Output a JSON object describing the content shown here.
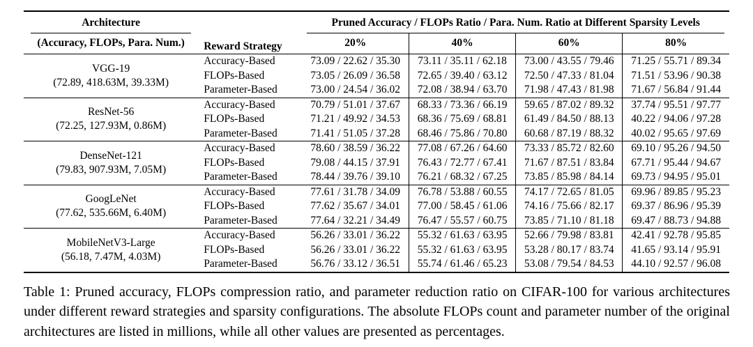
{
  "table": {
    "header": {
      "architecture_label": "Architecture",
      "architecture_sublabel": "(Accuracy, FLOPs, Para. Num.)",
      "reward_strategy_label": "Reward Strategy",
      "span_label": "Pruned Accuracy / FLOPs Ratio / Para. Num. Ratio at Different Sparsity Levels",
      "sparsity_levels": [
        "20%",
        "40%",
        "60%",
        "80%"
      ]
    },
    "groups": [
      {
        "architecture": "VGG-19",
        "specs": "(72.89, 418.63M, 39.33M)",
        "rows": [
          {
            "strategy": "Accuracy-Based",
            "values": [
              "73.09 / 22.62 / 35.30",
              "73.11 / 35.11 / 62.18",
              "73.00 / 43.55 / 79.46",
              "71.25 / 55.71 / 89.34"
            ]
          },
          {
            "strategy": "FLOPs-Based",
            "values": [
              "73.05 / 26.09 / 36.58",
              "72.65 / 39.40 / 63.12",
              "72.50 / 47.33 / 81.04",
              "71.51 / 53.96 / 90.38"
            ]
          },
          {
            "strategy": "Parameter-Based",
            "values": [
              "73.00 / 24.54 / 36.02",
              "72.08 / 38.94 / 63.70",
              "71.98 / 47.43 / 81.98",
              "71.67 / 56.84 / 91.44"
            ]
          }
        ]
      },
      {
        "architecture": "ResNet-56",
        "specs": "(72.25, 127.93M, 0.86M)",
        "rows": [
          {
            "strategy": "Accuracy-Based",
            "values": [
              "70.79 / 51.01 / 37.67",
              "68.33 / 73.36 / 66.19",
              "59.65 / 87.02 / 89.32",
              "37.74 / 95.51 / 97.77"
            ]
          },
          {
            "strategy": "FLOPs-Based",
            "values": [
              "71.21 / 49.92 / 34.53",
              "68.36 / 75.69 / 68.81",
              "61.49 / 84.50 / 88.13",
              "40.22 / 94.06 / 97.28"
            ]
          },
          {
            "strategy": "Parameter-Based",
            "values": [
              "71.41 / 51.05 / 37.28",
              "68.46 / 75.86 / 70.80",
              "60.68 / 87.19 / 88.32",
              "40.02 / 95.65 / 97.69"
            ]
          }
        ]
      },
      {
        "architecture": "DenseNet-121",
        "specs": "(79.83, 907.93M, 7.05M)",
        "rows": [
          {
            "strategy": "Accuracy-Based",
            "values": [
              "78.60 / 38.59 / 36.22",
              "77.08 / 67.26 / 64.60",
              "73.33 / 85.72 / 82.60",
              "69.10 / 95.26 / 94.50"
            ]
          },
          {
            "strategy": "FLOPs-Based",
            "values": [
              "79.08 / 44.15 / 37.91",
              "76.43 / 72.77 / 67.41",
              "71.67 / 87.51 / 83.84",
              "67.71 / 95.44 / 94.67"
            ]
          },
          {
            "strategy": "Parameter-Based",
            "values": [
              "78.44 / 39.76 / 39.10",
              "76.21 / 68.32 / 67.25",
              "73.85 / 85.98 / 84.14",
              "69.73 / 94.95 / 95.01"
            ]
          }
        ]
      },
      {
        "architecture": "GoogLeNet",
        "specs": "(77.62, 535.66M, 6.40M)",
        "rows": [
          {
            "strategy": "Accuracy-Based",
            "values": [
              "77.61 / 31.78 / 34.09",
              "76.78 / 53.88 / 60.55",
              "74.17 / 72.65 / 81.05",
              "69.96 / 89.85 / 95.23"
            ]
          },
          {
            "strategy": "FLOPs-Based",
            "values": [
              "77.62 / 35.67 / 34.01",
              "77.00 / 58.45 / 61.06",
              "74.16 / 75.66 / 82.17",
              "69.37 / 86.96 / 95.39"
            ]
          },
          {
            "strategy": "Parameter-Based",
            "values": [
              "77.64 / 32.21 / 34.49",
              "76.47 / 55.57 / 60.75",
              "73.85 / 71.10 / 81.18",
              "69.47 / 88.73 / 94.88"
            ]
          }
        ]
      },
      {
        "architecture": "MobileNetV3-Large",
        "specs": "(56.18, 7.47M, 4.03M)",
        "rows": [
          {
            "strategy": "Accuracy-Based",
            "values": [
              "56.26 / 33.01 / 36.22",
              "55.32 / 61.63 / 63.95",
              "52.66 / 79.98 / 83.81",
              "42.41 / 92.78 / 95.85"
            ]
          },
          {
            "strategy": "FLOPs-Based",
            "values": [
              "56.26 / 33.01 / 36.22",
              "55.32 / 61.63 / 63.95",
              "53.28 / 80.17 / 83.74",
              "41.65 / 93.14 / 95.91"
            ]
          },
          {
            "strategy": "Parameter-Based",
            "values": [
              "56.76 / 33.12 / 36.51",
              "55.74 / 61.46 / 65.23",
              "53.08 / 79.54 / 84.53",
              "44.10 / 92.57 / 96.08"
            ]
          }
        ]
      }
    ]
  },
  "caption": "Table 1: Pruned accuracy, FLOPs compression ratio, and parameter reduction ratio on CIFAR-100 for various architectures under different reward strategies and sparsity configurations. The absolute FLOPs count and parameter number of the original architectures are listed in millions, while all other values are presented as percentages.",
  "colors": {
    "text": "#000000",
    "background": "#ffffff",
    "rule": "#000000"
  }
}
